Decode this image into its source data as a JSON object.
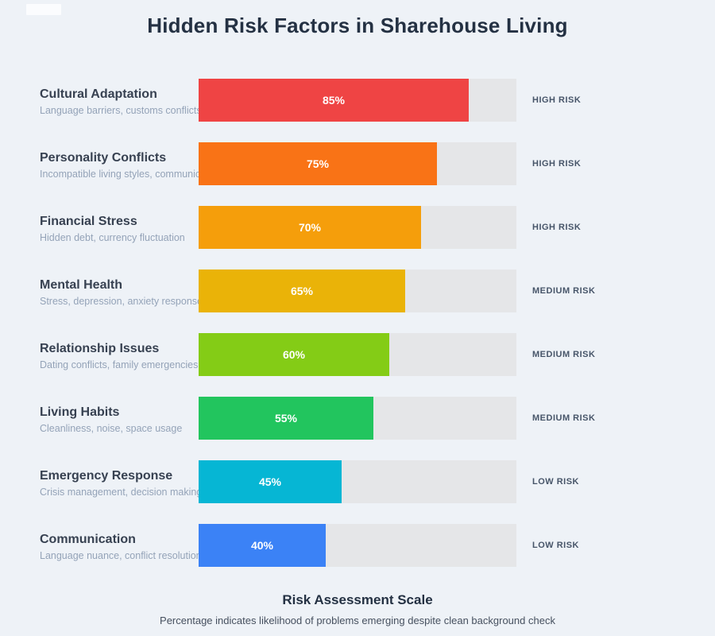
{
  "page": {
    "title": "Hidden Risk Factors in Sharehouse Living",
    "background_color": "#eef2f7",
    "track_color": "#e5e6e8",
    "title_color": "#243143"
  },
  "footer": {
    "title": "Risk Assessment Scale",
    "subtitle": "Percentage indicates likelihood of problems emerging despite clean background check"
  },
  "chart_data": {
    "type": "bar",
    "orientation": "horizontal",
    "title": "Hidden Risk Factors in Sharehouse Living",
    "unit": "%",
    "xlim": [
      0,
      100
    ],
    "grid": false,
    "legend": false,
    "categories": [
      "Cultural Adaptation",
      "Personality Conflicts",
      "Financial Stress",
      "Mental Health",
      "Relationship Issues",
      "Living Habits",
      "Emergency Response",
      "Communication"
    ],
    "values": [
      85,
      75,
      70,
      65,
      60,
      55,
      45,
      40
    ],
    "rows": [
      {
        "label": "Cultural Adaptation",
        "description": "Language barriers, customs conflicts",
        "value": 85,
        "value_label": "85%",
        "risk": "HIGH RISK",
        "color": "#ef4444"
      },
      {
        "label": "Personality Conflicts",
        "description": "Incompatible living styles, communica",
        "value": 75,
        "value_label": "75%",
        "risk": "HIGH RISK",
        "color": "#f97316"
      },
      {
        "label": "Financial Stress",
        "description": "Hidden debt, currency fluctuation",
        "value": 70,
        "value_label": "70%",
        "risk": "HIGH RISK",
        "color": "#f59e0b"
      },
      {
        "label": "Mental Health",
        "description": "Stress, depression, anxiety responses",
        "value": 65,
        "value_label": "65%",
        "risk": "MEDIUM RISK",
        "color": "#eab308"
      },
      {
        "label": "Relationship Issues",
        "description": "Dating conflicts, family emergencies",
        "value": 60,
        "value_label": "60%",
        "risk": "MEDIUM RISK",
        "color": "#84cc16"
      },
      {
        "label": "Living Habits",
        "description": "Cleanliness, noise, space usage",
        "value": 55,
        "value_label": "55%",
        "risk": "MEDIUM RISK",
        "color": "#22c55e"
      },
      {
        "label": "Emergency Response",
        "description": "Crisis management, decision making",
        "value": 45,
        "value_label": "45%",
        "risk": "LOW RISK",
        "color": "#06b6d4"
      },
      {
        "label": "Communication",
        "description": "Language nuance, conflict resolution",
        "value": 40,
        "value_label": "40%",
        "risk": "LOW RISK",
        "color": "#3b82f6"
      }
    ]
  }
}
